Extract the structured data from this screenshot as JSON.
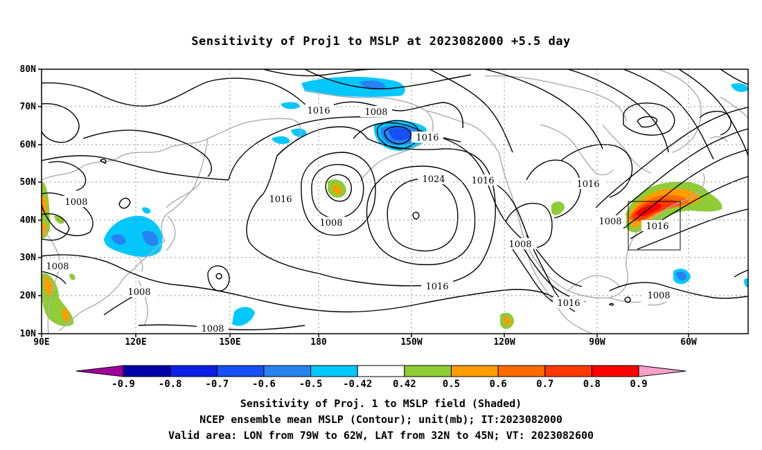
{
  "title": "Sensitivity of Proj1 to MSLP at 2023082000 +5.5 day",
  "lat_labels": [
    "80N",
    "70N",
    "60N",
    "50N",
    "40N",
    "30N",
    "20N",
    "10N"
  ],
  "lon_labels": [
    "90E",
    "120E",
    "150E",
    "180",
    "150W",
    "120W",
    "90W",
    "60W"
  ],
  "contour_labels": [
    "1016",
    "1008",
    "1016",
    "1008",
    "1016",
    "1024",
    "1016",
    "1016",
    "1008",
    "1016",
    "1008",
    "1016",
    "1008",
    "1008",
    "1008",
    "1008",
    "1016",
    "1008"
  ],
  "colorbar": {
    "labels": [
      "-0.9",
      "-0.8",
      "-0.7",
      "-0.6",
      "-0.5",
      "-0.42",
      "0.42",
      "0.5",
      "0.6",
      "0.7",
      "0.8",
      "0.9"
    ],
    "colors": [
      "#a0009a",
      "#0000a8",
      "#0a1ee6",
      "#1450f5",
      "#2882f0",
      "#00c8ff",
      "#ffffff",
      "#8fcc35",
      "#ff9d00",
      "#ff6a00",
      "#ff3a00",
      "#ff0000",
      "#ffa0c8"
    ]
  },
  "captions": [
    "Sensitivity of Proj. 1 to MSLP field (Shaded)",
    "NCEP ensemble mean MSLP (Contour); unit(mb); IT:2023082000",
    "Valid area: LON from 79W to 62W, LAT from 32N to 45N; VT: 2023082600"
  ]
}
